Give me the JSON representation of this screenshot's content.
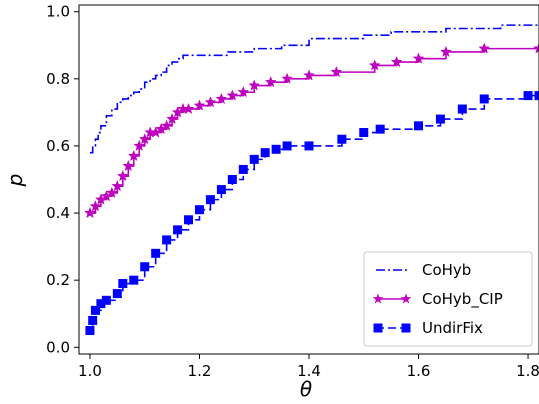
{
  "chart_data": {
    "type": "line",
    "xlabel": "θ",
    "ylabel": "p",
    "xlim": [
      0.98,
      1.82
    ],
    "ylim": [
      -0.02,
      1.02
    ],
    "x_ticks": [
      1.0,
      1.2,
      1.4,
      1.6,
      1.8
    ],
    "x_tick_labels": [
      "1.0",
      "1.2",
      "1.4",
      "1.6",
      "1.8"
    ],
    "y_ticks": [
      0.0,
      0.2,
      0.4,
      0.6,
      0.8,
      1.0
    ],
    "y_tick_labels": [
      "0.0",
      "0.2",
      "0.4",
      "0.6",
      "0.8",
      "1.0"
    ],
    "grid": false,
    "legend_position": "bottom-right",
    "series": [
      {
        "name": "CoHyb",
        "color": "#0000ff",
        "style": "dashdot",
        "marker": "none",
        "x": [
          1.0,
          1.005,
          1.01,
          1.015,
          1.02,
          1.03,
          1.04,
          1.05,
          1.06,
          1.07,
          1.08,
          1.09,
          1.1,
          1.11,
          1.12,
          1.13,
          1.14,
          1.15,
          1.16,
          1.17,
          1.2,
          1.25,
          1.3,
          1.35,
          1.4,
          1.45,
          1.5,
          1.55,
          1.6,
          1.65,
          1.7,
          1.75,
          1.82
        ],
        "y": [
          0.58,
          0.6,
          0.62,
          0.64,
          0.66,
          0.69,
          0.71,
          0.73,
          0.74,
          0.75,
          0.76,
          0.77,
          0.79,
          0.8,
          0.81,
          0.82,
          0.84,
          0.85,
          0.86,
          0.87,
          0.87,
          0.88,
          0.89,
          0.9,
          0.92,
          0.92,
          0.93,
          0.94,
          0.94,
          0.95,
          0.95,
          0.96,
          0.96
        ]
      },
      {
        "name": "CoHyb_CIP",
        "color": "#bf00bf",
        "style": "solid",
        "marker": "star",
        "x": [
          1.0,
          1.01,
          1.02,
          1.03,
          1.04,
          1.05,
          1.06,
          1.07,
          1.08,
          1.09,
          1.1,
          1.11,
          1.12,
          1.13,
          1.14,
          1.15,
          1.16,
          1.17,
          1.18,
          1.2,
          1.22,
          1.24,
          1.26,
          1.28,
          1.3,
          1.33,
          1.36,
          1.4,
          1.45,
          1.52,
          1.56,
          1.6,
          1.65,
          1.72,
          1.82
        ],
        "y": [
          0.4,
          0.42,
          0.44,
          0.45,
          0.46,
          0.48,
          0.51,
          0.54,
          0.57,
          0.6,
          0.62,
          0.64,
          0.64,
          0.65,
          0.66,
          0.68,
          0.7,
          0.71,
          0.71,
          0.72,
          0.73,
          0.74,
          0.75,
          0.76,
          0.78,
          0.79,
          0.8,
          0.81,
          0.82,
          0.84,
          0.85,
          0.86,
          0.88,
          0.89,
          0.89
        ]
      },
      {
        "name": "UndirFix",
        "color": "#0000ff",
        "style": "dashed",
        "marker": "square",
        "x": [
          1.0,
          1.005,
          1.01,
          1.02,
          1.03,
          1.05,
          1.06,
          1.08,
          1.1,
          1.12,
          1.14,
          1.16,
          1.18,
          1.2,
          1.22,
          1.24,
          1.26,
          1.28,
          1.3,
          1.32,
          1.34,
          1.36,
          1.4,
          1.46,
          1.5,
          1.53,
          1.6,
          1.64,
          1.68,
          1.72,
          1.8,
          1.82
        ],
        "y": [
          0.05,
          0.08,
          0.11,
          0.13,
          0.14,
          0.16,
          0.19,
          0.2,
          0.24,
          0.28,
          0.32,
          0.35,
          0.38,
          0.41,
          0.44,
          0.47,
          0.5,
          0.53,
          0.56,
          0.58,
          0.59,
          0.6,
          0.6,
          0.62,
          0.64,
          0.65,
          0.66,
          0.68,
          0.71,
          0.74,
          0.75,
          0.75
        ]
      }
    ]
  }
}
